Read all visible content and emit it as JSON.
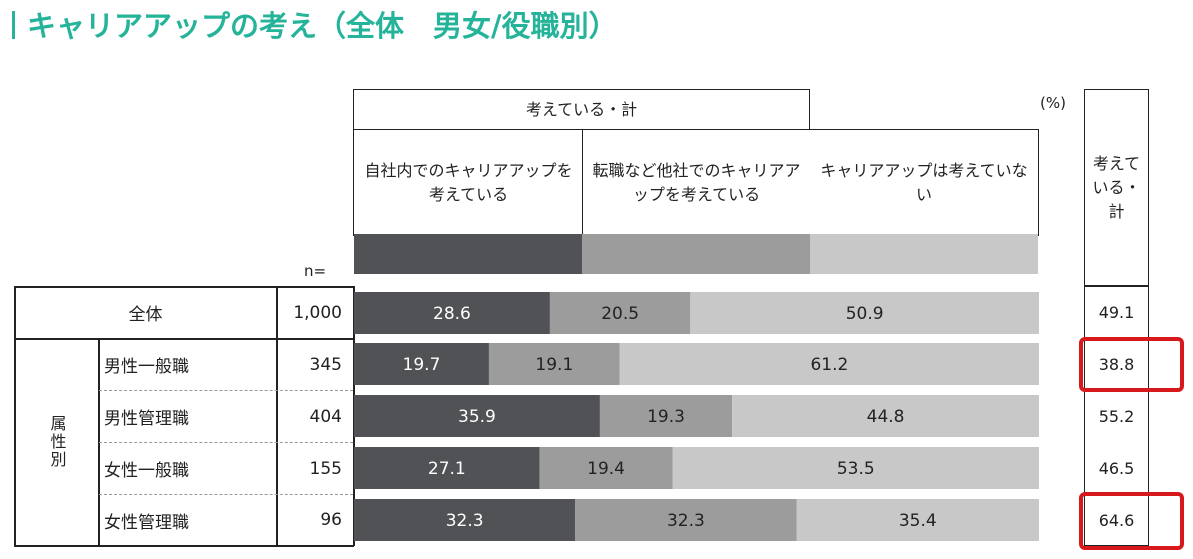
{
  "title": "キャリアアップの考え（全体　男女/役職別）",
  "unit_label": "(%)",
  "header_group_label": "考えている・計",
  "legend": [
    {
      "label": "自社内でのキャリアアップを考えている",
      "color": "#505256"
    },
    {
      "label": "転職など他社でのキャリアアップを考えている",
      "color": "#9c9c9c"
    },
    {
      "label": "キャリアアップは考えていない",
      "color": "#c8c8c8"
    }
  ],
  "n_label": "n=",
  "total_header": "考えている・計",
  "group_label": "属性別",
  "rows": [
    {
      "label": "全体",
      "n": "1,000",
      "total": "49.1",
      "highlight": false
    },
    {
      "label": "男性一般職",
      "n": "345",
      "total": "38.8",
      "highlight": true
    },
    {
      "label": "男性管理職",
      "n": "404",
      "total": "55.2",
      "highlight": false
    },
    {
      "label": "女性一般職",
      "n": "155",
      "total": "46.5",
      "highlight": false
    },
    {
      "label": "女性管理職",
      "n": "96",
      "total": "64.6",
      "highlight": true
    }
  ],
  "chart_data": {
    "type": "bar",
    "stacked": true,
    "orientation": "horizontal",
    "title": "キャリアアップの考え（全体　男女/役職別）",
    "unit": "%",
    "categories": [
      "全体",
      "男性一般職",
      "男性管理職",
      "女性一般職",
      "女性管理職"
    ],
    "series": [
      {
        "name": "自社内でのキャリアアップを考えている",
        "values": [
          28.6,
          19.7,
          35.9,
          27.1,
          32.3
        ]
      },
      {
        "name": "転職など他社でのキャリアアップを考えている",
        "values": [
          20.5,
          19.1,
          19.3,
          19.4,
          32.3
        ]
      },
      {
        "name": "キャリアアップは考えていない",
        "values": [
          50.9,
          61.2,
          44.8,
          53.5,
          35.4
        ]
      }
    ],
    "xlim": [
      0,
      100
    ]
  }
}
